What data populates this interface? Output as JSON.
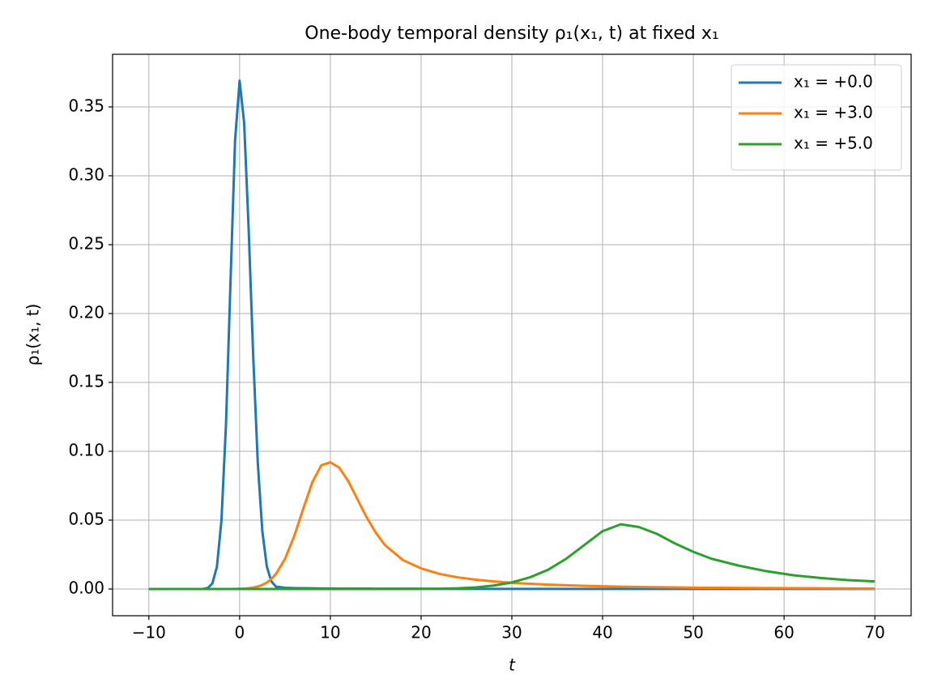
{
  "chart_data": {
    "type": "line",
    "title": "One-body temporal density ρ₁(x₁, t) at fixed x₁",
    "xlabel": "t",
    "ylabel": "ρ₁(x₁, t)",
    "x": [
      -10,
      -8,
      -6,
      -5,
      -4,
      -3.5,
      -3,
      -2.5,
      -2,
      -1.5,
      -1,
      -0.5,
      0,
      0.5,
      1,
      1.5,
      2,
      2.5,
      3,
      3.5,
      4,
      5,
      6,
      7,
      8,
      9,
      10,
      11,
      12,
      13,
      14,
      15,
      16,
      18,
      20,
      22,
      24,
      26,
      28,
      30,
      32,
      34,
      36,
      38,
      40,
      42,
      44,
      46,
      48,
      50,
      52,
      55,
      58,
      61,
      64,
      67,
      70
    ],
    "series": [
      {
        "name": "x₁ = +0.0",
        "color": "#1f77b4",
        "values": [
          0,
          0,
          0,
          0,
          0.0001,
          0.0008,
          0.0041,
          0.0162,
          0.0499,
          0.1198,
          0.2238,
          0.3256,
          0.369,
          0.3383,
          0.2607,
          0.1689,
          0.092,
          0.0421,
          0.0162,
          0.0055,
          0.0018,
          0.0009,
          0.0007,
          0.0006,
          0.0005,
          0.0004,
          0.0004,
          0.0003,
          0.0003,
          0.0003,
          0.0003,
          0.0002,
          0.0002,
          0.0002,
          0.0002,
          0.0001,
          0.0001,
          0.0001,
          0.0001,
          0.0001,
          0.0001,
          0.0001,
          0.0001,
          0.0001,
          0.0001,
          0.0001,
          0.0001,
          0.0001,
          0.0001,
          0.0001,
          0.0001,
          0.0001,
          0.0001,
          0.0001,
          0.0001,
          0.0001,
          0.0001
        ]
      },
      {
        "name": "x₁ = +3.0",
        "color": "#ff7f0e",
        "values": [
          0,
          0,
          0,
          0,
          0,
          0,
          0,
          0,
          0,
          0,
          0,
          0.0001,
          0.0002,
          0.0003,
          0.0006,
          0.001,
          0.0018,
          0.003,
          0.0047,
          0.0073,
          0.0109,
          0.0218,
          0.0381,
          0.058,
          0.0773,
          0.0898,
          0.092,
          0.088,
          0.078,
          0.065,
          0.052,
          0.041,
          0.032,
          0.021,
          0.015,
          0.011,
          0.0085,
          0.0068,
          0.0055,
          0.0045,
          0.0038,
          0.0032,
          0.0027,
          0.0023,
          0.002,
          0.0017,
          0.0015,
          0.0013,
          0.0012,
          0.001,
          0.0009,
          0.0008,
          0.0007,
          0.0006,
          0.0005,
          0.0004,
          0.0003
        ]
      },
      {
        "name": "x₁ = +5.0",
        "color": "#2ca02c",
        "values": [
          0,
          0,
          0,
          0,
          0,
          0,
          0,
          0,
          0,
          0,
          0,
          0,
          0,
          0,
          0,
          0,
          0,
          0,
          0,
          0,
          0,
          0,
          0,
          0,
          0,
          0,
          0,
          0,
          0,
          0,
          0,
          0,
          0,
          0,
          0.0001,
          0.0002,
          0.0005,
          0.0012,
          0.0025,
          0.0048,
          0.0085,
          0.014,
          0.022,
          0.032,
          0.042,
          0.047,
          0.045,
          0.04,
          0.033,
          0.027,
          0.022,
          0.017,
          0.013,
          0.01,
          0.008,
          0.0065,
          0.0055
        ]
      }
    ],
    "xlim": [
      -14,
      74
    ],
    "ylim": [
      -0.0194,
      0.3882
    ],
    "xticks": [
      {
        "value": -10,
        "label": "−10"
      },
      0,
      10,
      20,
      30,
      40,
      50,
      60,
      70
    ],
    "yticks": [
      {
        "value": 0,
        "label": "0.00"
      },
      {
        "value": 0.05,
        "label": "0.05"
      },
      {
        "value": 0.1,
        "label": "0.10"
      },
      {
        "value": 0.15,
        "label": "0.15"
      },
      {
        "value": 0.2,
        "label": "0.20"
      },
      {
        "value": 0.25,
        "label": "0.25"
      },
      {
        "value": 0.3,
        "label": "0.30"
      },
      {
        "value": 0.35,
        "label": "0.35"
      }
    ],
    "grid": true,
    "legend": "upper right"
  }
}
